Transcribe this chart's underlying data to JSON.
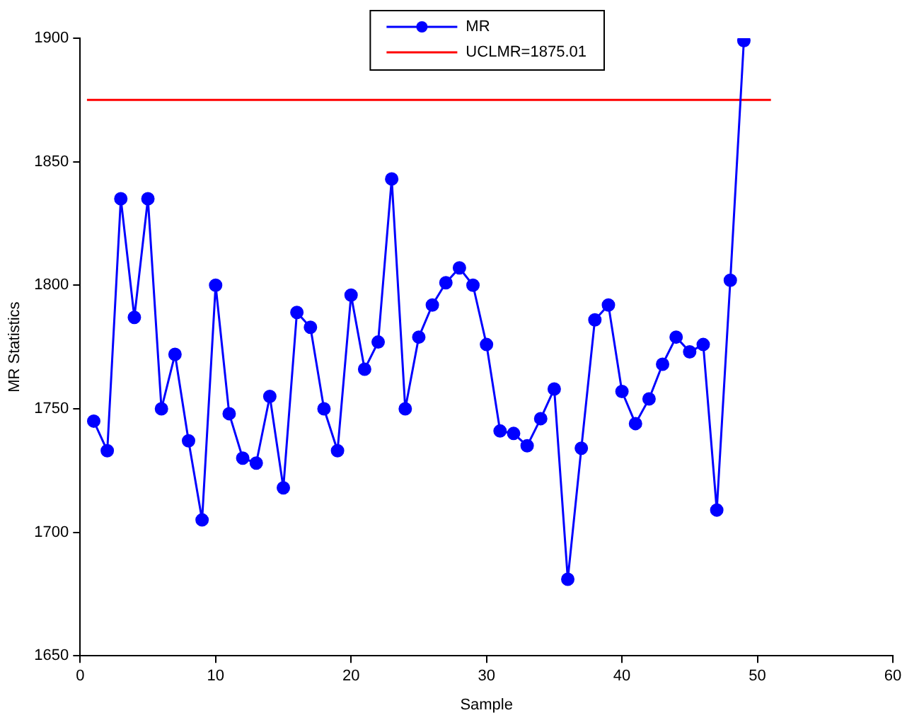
{
  "chart_data": {
    "type": "line",
    "xlabel": "Sample",
    "ylabel": "MR Statistics",
    "xlim": [
      0,
      60
    ],
    "xticks": [
      0,
      10,
      20,
      30,
      40,
      50,
      60
    ],
    "ylim": [
      1650,
      1900
    ],
    "yticks": [
      1650,
      1700,
      1750,
      1800,
      1850,
      1900
    ],
    "grid": false,
    "legend": "top",
    "marker": "circle",
    "line_style": "solid",
    "series": [
      {
        "name": "MR",
        "color": "#0000ff",
        "x": [
          1,
          2,
          3,
          4,
          5,
          6,
          7,
          8,
          9,
          10,
          11,
          12,
          13,
          14,
          15,
          16,
          17,
          18,
          19,
          20,
          21,
          22,
          23,
          24,
          25,
          26,
          27,
          28,
          29,
          30,
          31,
          32,
          33,
          34,
          35,
          36,
          37,
          38,
          39,
          40,
          41,
          42,
          43,
          44,
          45,
          46,
          47,
          48,
          49
        ],
        "values": [
          1745,
          1733,
          1835,
          1787,
          1835,
          1750,
          1772,
          1737,
          1705,
          1800,
          1748,
          1730,
          1728,
          1755,
          1718,
          1789,
          1783,
          1750,
          1733,
          1796,
          1766,
          1777,
          1843,
          1750,
          1779,
          1792,
          1801,
          1807,
          1800,
          1776,
          1741,
          1740,
          1735,
          1746,
          1758,
          1681,
          1734,
          1786,
          1792,
          1757,
          1744,
          1754,
          1768,
          1779,
          1773,
          1776,
          1709,
          1802,
          1899
        ]
      },
      {
        "name": "UCLMR=1875.01",
        "color": "#ff0000",
        "marker": "none",
        "x": [
          0.5,
          51
        ],
        "values": [
          1875.01,
          1875.01
        ]
      }
    ]
  }
}
